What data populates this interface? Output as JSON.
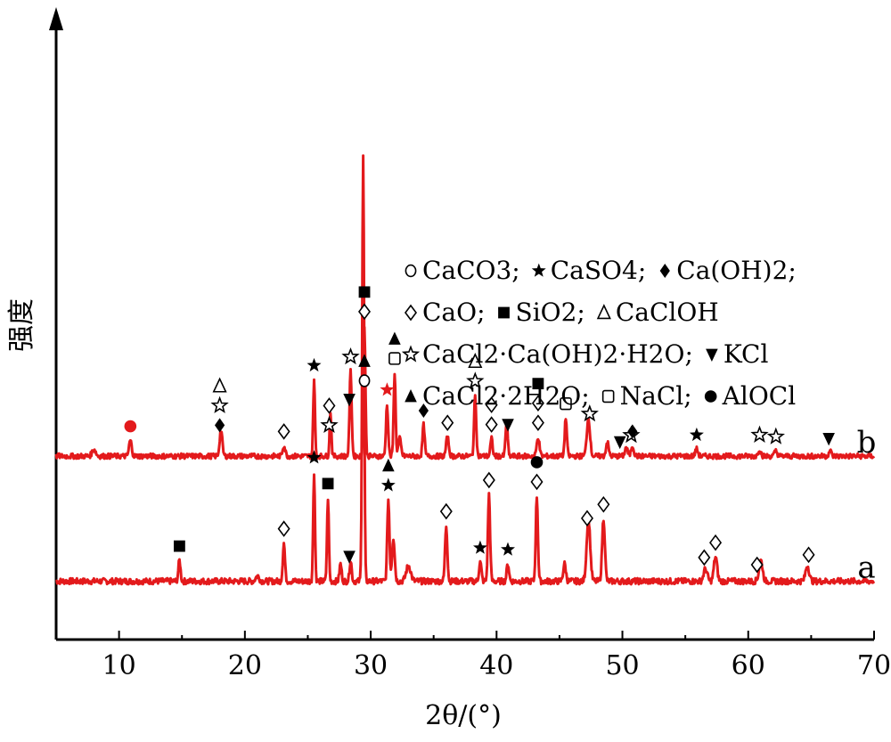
{
  "chart_data": {
    "type": "line",
    "xlabel": "2θ/(°)",
    "ylabel": "强度",
    "xlim": [
      5,
      70
    ],
    "x_ticks": [
      10,
      20,
      30,
      40,
      50,
      60,
      70
    ],
    "y_ticks_shown": false,
    "grid": false,
    "line_color": "#e31a1c",
    "series": [
      {
        "name": "a",
        "baseline": 1.0,
        "noise": 0.35,
        "peaks": [
          {
            "x": 14.8,
            "h": 1.2,
            "w": 0.12
          },
          {
            "x": 21.0,
            "h": 0.3,
            "w": 0.2
          },
          {
            "x": 23.1,
            "h": 2.2,
            "w": 0.12
          },
          {
            "x": 25.5,
            "h": 6.3,
            "w": 0.1
          },
          {
            "x": 26.6,
            "h": 4.8,
            "w": 0.1
          },
          {
            "x": 27.6,
            "h": 1.0,
            "w": 0.12
          },
          {
            "x": 28.4,
            "h": 1.2,
            "w": 0.12
          },
          {
            "x": 29.4,
            "h": 24.5,
            "w": 0.11
          },
          {
            "x": 31.4,
            "h": 4.7,
            "w": 0.12
          },
          {
            "x": 31.8,
            "h": 2.5,
            "w": 0.15
          },
          {
            "x": 33.0,
            "h": 0.9,
            "w": 0.25
          },
          {
            "x": 36.0,
            "h": 3.2,
            "w": 0.13
          },
          {
            "x": 38.7,
            "h": 1.1,
            "w": 0.13
          },
          {
            "x": 39.4,
            "h": 5.0,
            "w": 0.12
          },
          {
            "x": 40.9,
            "h": 1.0,
            "w": 0.13
          },
          {
            "x": 43.2,
            "h": 4.9,
            "w": 0.12
          },
          {
            "x": 45.4,
            "h": 1.0,
            "w": 0.15
          },
          {
            "x": 47.3,
            "h": 3.6,
            "w": 0.2
          },
          {
            "x": 48.5,
            "h": 3.6,
            "w": 0.15
          },
          {
            "x": 56.6,
            "h": 0.7,
            "w": 0.2
          },
          {
            "x": 57.4,
            "h": 1.4,
            "w": 0.18
          },
          {
            "x": 61.0,
            "h": 1.2,
            "w": 0.2
          },
          {
            "x": 64.7,
            "h": 0.9,
            "w": 0.2
          }
        ],
        "label": "a"
      },
      {
        "name": "b",
        "baseline": 8.2,
        "noise": 0.3,
        "peaks": [
          {
            "x": 8.0,
            "h": 0.4,
            "w": 0.2
          },
          {
            "x": 10.9,
            "h": 0.9,
            "w": 0.15
          },
          {
            "x": 18.1,
            "h": 1.5,
            "w": 0.15
          },
          {
            "x": 23.1,
            "h": 0.6,
            "w": 0.15
          },
          {
            "x": 25.5,
            "h": 4.4,
            "w": 0.1
          },
          {
            "x": 26.8,
            "h": 2.6,
            "w": 0.1
          },
          {
            "x": 28.4,
            "h": 4.9,
            "w": 0.12
          },
          {
            "x": 29.5,
            "h": 7.5,
            "w": 0.11
          },
          {
            "x": 31.3,
            "h": 3.0,
            "w": 0.12
          },
          {
            "x": 31.9,
            "h": 4.8,
            "w": 0.11
          },
          {
            "x": 32.3,
            "h": 1.0,
            "w": 0.15
          },
          {
            "x": 34.2,
            "h": 1.8,
            "w": 0.12
          },
          {
            "x": 36.1,
            "h": 1.1,
            "w": 0.15
          },
          {
            "x": 38.3,
            "h": 3.5,
            "w": 0.12
          },
          {
            "x": 39.6,
            "h": 1.0,
            "w": 0.12
          },
          {
            "x": 40.8,
            "h": 2.0,
            "w": 0.12
          },
          {
            "x": 43.3,
            "h": 1.1,
            "w": 0.15
          },
          {
            "x": 45.5,
            "h": 2.2,
            "w": 0.12
          },
          {
            "x": 47.3,
            "h": 2.2,
            "w": 0.18
          },
          {
            "x": 48.8,
            "h": 0.8,
            "w": 0.15
          },
          {
            "x": 50.3,
            "h": 0.5,
            "w": 0.15
          },
          {
            "x": 50.8,
            "h": 0.6,
            "w": 0.15
          },
          {
            "x": 55.9,
            "h": 0.4,
            "w": 0.15
          },
          {
            "x": 60.9,
            "h": 0.4,
            "w": 0.15
          },
          {
            "x": 62.2,
            "h": 0.3,
            "w": 0.15
          },
          {
            "x": 66.5,
            "h": 0.3,
            "w": 0.15
          }
        ],
        "label": "b"
      }
    ],
    "markers_a": [
      {
        "x": 14.8,
        "s": "square-filled"
      },
      {
        "x": 23.1,
        "s": "diamond-open"
      },
      {
        "x": 25.5,
        "s": "star-filled"
      },
      {
        "x": 26.6,
        "s": "square-filled"
      },
      {
        "x": 28.3,
        "s": "down-triangle"
      },
      {
        "x": 29.5,
        "s": "triangle-filled"
      },
      {
        "x": 29.5,
        "s": "circle-open"
      },
      {
        "x": 31.4,
        "s": "triangle-filled"
      },
      {
        "x": 31.4,
        "s": "star-filled"
      },
      {
        "x": 36.0,
        "s": "diamond-open"
      },
      {
        "x": 38.7,
        "s": "star-filled"
      },
      {
        "x": 39.4,
        "s": "diamond-open"
      },
      {
        "x": 40.9,
        "s": "star-filled"
      },
      {
        "x": 43.2,
        "s": "circle-filled"
      },
      {
        "x": 43.2,
        "s": "diamond-open"
      },
      {
        "x": 47.2,
        "s": "diamond-open"
      },
      {
        "x": 48.5,
        "s": "diamond-open"
      },
      {
        "x": 56.5,
        "s": "diamond-open"
      },
      {
        "x": 57.4,
        "s": "diamond-open"
      },
      {
        "x": 60.7,
        "s": "diamond-open"
      },
      {
        "x": 64.8,
        "s": "diamond-open"
      }
    ],
    "markers_b": [
      {
        "x": 10.9,
        "s": "circle-filled-red"
      },
      {
        "x": 18.0,
        "s": "triangle-open"
      },
      {
        "x": 18.0,
        "s": "star-open"
      },
      {
        "x": 18.0,
        "s": "diamond-filled"
      },
      {
        "x": 23.1,
        "s": "diamond-open"
      },
      {
        "x": 25.5,
        "s": "star-filled"
      },
      {
        "x": 26.7,
        "s": "diamond-open"
      },
      {
        "x": 26.7,
        "s": "star-open"
      },
      {
        "x": 28.3,
        "s": "down-triangle"
      },
      {
        "x": 28.4,
        "s": "star-open"
      },
      {
        "x": 29.5,
        "s": "square-filled"
      },
      {
        "x": 29.5,
        "s": "diamond-open"
      },
      {
        "x": 31.3,
        "s": "star-red"
      },
      {
        "x": 31.9,
        "s": "triangle-filled"
      },
      {
        "x": 31.9,
        "s": "square-open"
      },
      {
        "x": 34.2,
        "s": "diamond-filled"
      },
      {
        "x": 36.1,
        "s": "diamond-open"
      },
      {
        "x": 38.3,
        "s": "triangle-open"
      },
      {
        "x": 38.3,
        "s": "star-open"
      },
      {
        "x": 39.6,
        "s": "diamond-open"
      },
      {
        "x": 39.6,
        "s": "diamond-open"
      },
      {
        "x": 40.9,
        "s": "down-triangle"
      },
      {
        "x": 43.3,
        "s": "square-filled"
      },
      {
        "x": 43.3,
        "s": "diamond-open"
      },
      {
        "x": 43.3,
        "s": "diamond-open"
      },
      {
        "x": 45.5,
        "s": "square-open"
      },
      {
        "x": 47.4,
        "s": "star-open"
      },
      {
        "x": 49.8,
        "s": "down-triangle"
      },
      {
        "x": 50.7,
        "s": "star-open"
      },
      {
        "x": 50.8,
        "s": "diamond-filled"
      },
      {
        "x": 55.9,
        "s": "star-filled"
      },
      {
        "x": 60.9,
        "s": "star-open"
      },
      {
        "x": 62.2,
        "s": "star-open"
      },
      {
        "x": 66.4,
        "s": "down-triangle"
      }
    ],
    "legend": {
      "placement": "center-right",
      "rows": [
        [
          {
            "s": "circle-open",
            "label": "CaCO3;"
          },
          {
            "s": "star-filled",
            "label": "CaSO4;"
          },
          {
            "s": "diamond-filled",
            "label": "Ca(OH)2;"
          }
        ],
        [
          {
            "s": "diamond-open",
            "label": "CaO;"
          },
          {
            "s": "square-filled",
            "label": "SiO2;"
          },
          {
            "s": "triangle-open",
            "label": "CaClOH"
          }
        ],
        [
          {
            "s": "star-open",
            "label": "CaCl2·Ca(OH)2·H2O;"
          },
          {
            "s": "down-triangle",
            "label": "KCl"
          }
        ],
        [
          {
            "s": "triangle-filled",
            "label": "CaCl2·2H2O;"
          },
          {
            "s": "square-open",
            "label": "NaCl;"
          },
          {
            "s": "circle-filled",
            "label": "AlOCl"
          }
        ]
      ]
    }
  }
}
